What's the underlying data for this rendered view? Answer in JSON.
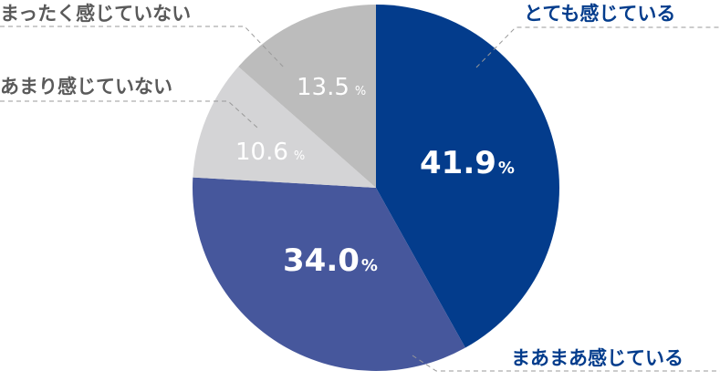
{
  "chart_data": {
    "type": "pie",
    "start": "top",
    "direction": "clockwise",
    "unit": "%",
    "slices": [
      {
        "label": "とても感じている",
        "value": 41.9,
        "display": "41.9",
        "color": "#033c8c",
        "label_color": "#033c8c"
      },
      {
        "label": "まあまあ感じている",
        "value": 34.0,
        "display": "34.0",
        "color": "#46579c",
        "label_color": "#033c8c"
      },
      {
        "label": "あまり感じていない",
        "value": 10.6,
        "display": "10.6",
        "color": "#d4d4d6",
        "label_color": "#5a5a5a"
      },
      {
        "label": "まったく感じていない",
        "value": 13.5,
        "display": "13.5",
        "color": "#bcbcbc",
        "label_color": "#5a5a5a"
      }
    ]
  }
}
